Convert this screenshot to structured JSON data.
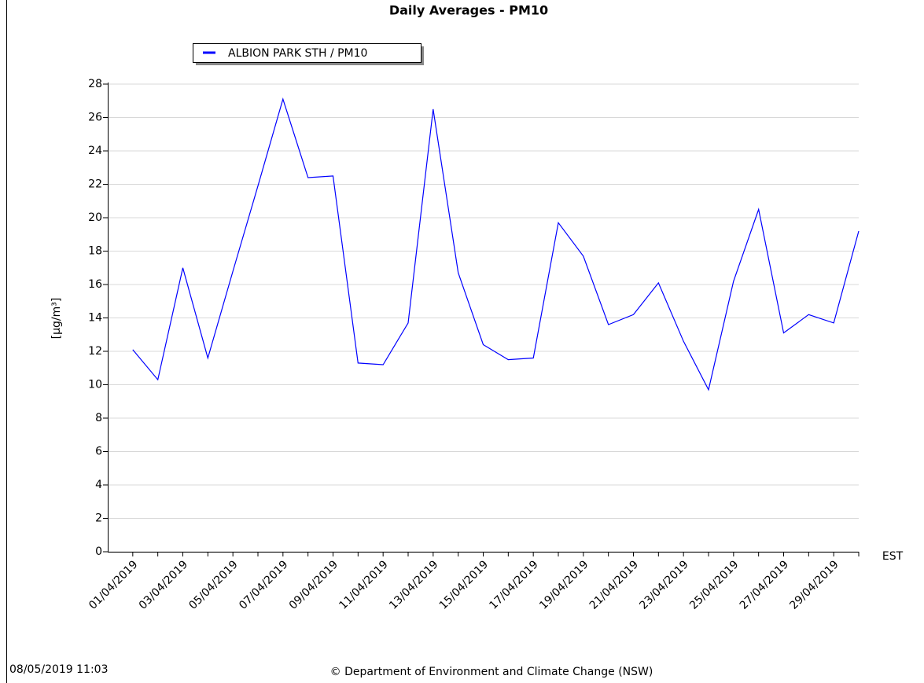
{
  "chart_data": {
    "type": "line",
    "title": "Daily Averages - PM10",
    "ylabel": "[µg/m³]",
    "xlabel": "EST",
    "timestamp": "08/05/2019 11:03",
    "credit": "© Department of Environment and Climate Change (NSW)",
    "categories": [
      "01/04/2019",
      null,
      "03/04/2019",
      null,
      "05/04/2019",
      null,
      "07/04/2019",
      null,
      "09/04/2019",
      null,
      "11/04/2019",
      null,
      "13/04/2019",
      null,
      "15/04/2019",
      null,
      "17/04/2019",
      null,
      "19/04/2019",
      null,
      "21/04/2019",
      null,
      "23/04/2019",
      null,
      "25/04/2019",
      null,
      "27/04/2019",
      null,
      "29/04/2019",
      null
    ],
    "series": [
      {
        "name": "ALBION PARK STH / PM10",
        "color": "#0000ff",
        "values": [
          12.1,
          10.3,
          17.0,
          11.6,
          16.8,
          21.9,
          27.1,
          22.4,
          22.5,
          11.3,
          11.2,
          13.7,
          26.5,
          16.7,
          12.4,
          11.5,
          11.6,
          19.7,
          17.7,
          13.6,
          14.2,
          16.1,
          12.6,
          9.7,
          16.2,
          20.5,
          13.1,
          14.2,
          13.7,
          19.2
        ]
      }
    ],
    "ylim": [
      0,
      28
    ],
    "yticks": [
      0,
      2,
      4,
      6,
      8,
      10,
      12,
      14,
      16,
      18,
      20,
      22,
      24,
      26,
      28
    ],
    "grid": true
  }
}
